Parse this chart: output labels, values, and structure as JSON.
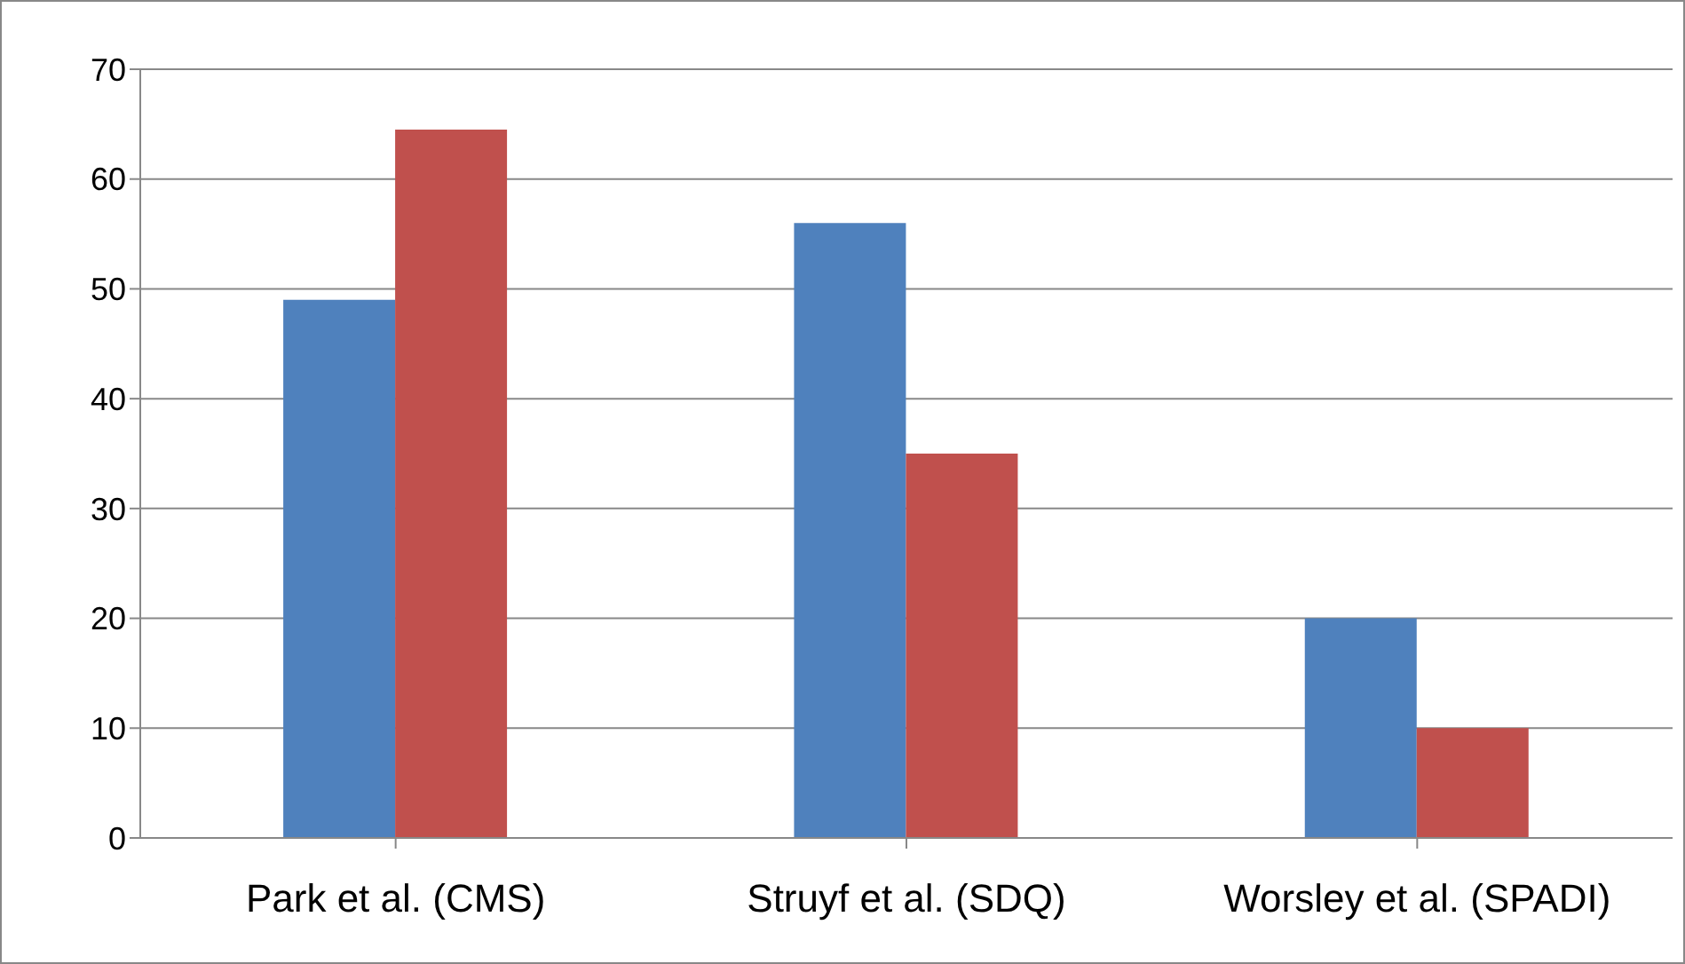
{
  "chart_data": {
    "type": "bar",
    "categories": [
      "Park et al. (CMS)",
      "Struyf et al. (SDQ)",
      "Worsley et al. (SPADI)"
    ],
    "series": [
      {
        "color": "#4f81bd",
        "values": [
          49,
          56,
          20
        ]
      },
      {
        "color": "#c0504d",
        "values": [
          64.5,
          35,
          10
        ]
      }
    ],
    "ylim": [
      0,
      70
    ],
    "yticks": [
      0,
      10,
      20,
      30,
      40,
      50,
      60,
      70
    ],
    "grid": "y",
    "legend": false
  }
}
